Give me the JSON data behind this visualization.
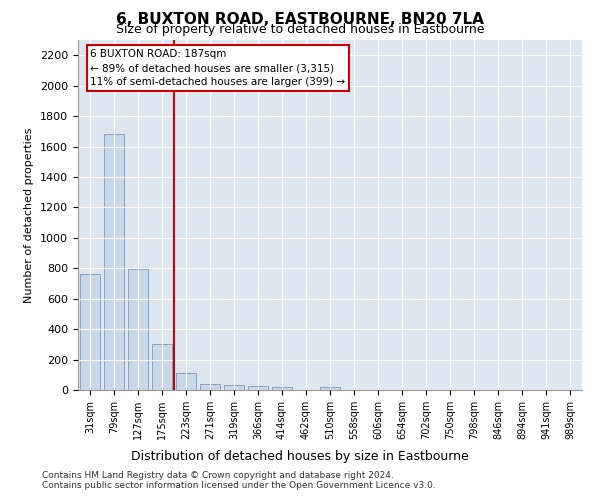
{
  "title": "6, BUXTON ROAD, EASTBOURNE, BN20 7LA",
  "subtitle": "Size of property relative to detached houses in Eastbourne",
  "xlabel": "Distribution of detached houses by size in Eastbourne",
  "ylabel": "Number of detached properties",
  "bar_color": "#c8d8e8",
  "bar_edge_color": "#7799bb",
  "background_color": "#dce6f0",
  "grid_color": "#ffffff",
  "fig_background": "#ffffff",
  "categories": [
    "31sqm",
    "79sqm",
    "127sqm",
    "175sqm",
    "223sqm",
    "271sqm",
    "319sqm",
    "366sqm",
    "414sqm",
    "462sqm",
    "510sqm",
    "558sqm",
    "606sqm",
    "654sqm",
    "702sqm",
    "750sqm",
    "798sqm",
    "846sqm",
    "894sqm",
    "941sqm",
    "989sqm"
  ],
  "values": [
    760,
    1680,
    795,
    300,
    112,
    42,
    30,
    25,
    22,
    0,
    20,
    0,
    0,
    0,
    0,
    0,
    0,
    0,
    0,
    0,
    0
  ],
  "ylim": [
    0,
    2300
  ],
  "yticks": [
    0,
    200,
    400,
    600,
    800,
    1000,
    1200,
    1400,
    1600,
    1800,
    2000,
    2200
  ],
  "vline_x": 3.5,
  "vline_color": "#cc0000",
  "annotation_line1": "6 BUXTON ROAD: 187sqm",
  "annotation_line2": "← 89% of detached houses are smaller (3,315)",
  "annotation_line3": "11% of semi-detached houses are larger (399) →",
  "footnote1": "Contains HM Land Registry data © Crown copyright and database right 2024.",
  "footnote2": "Contains public sector information licensed under the Open Government Licence v3.0."
}
